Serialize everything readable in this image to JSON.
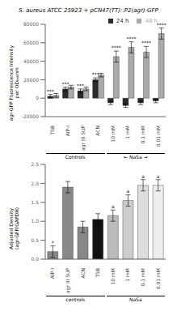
{
  "chart_data": [
    {
      "type": "bar",
      "title": "S. aureus ATCC 25923 + pCN47(TT)::P2(agr)-GFP",
      "ylabel": "agr-GFP Fluorescence Intensity\nper OD₆₀₀nm",
      "categories": [
        "TSB",
        "AIP-I",
        "agr III SUP",
        "ACN",
        "10 mM",
        "1 mM",
        "0.1 mM",
        "0.01 mM"
      ],
      "series": [
        {
          "name": "24 h",
          "color": "#2a2a2a",
          "values": [
            2000,
            10000,
            8000,
            20000,
            -5000,
            -8000,
            -5000,
            -3000
          ],
          "errors": [
            2000,
            2000,
            2000,
            2000,
            2000,
            2000,
            2000,
            2000
          ],
          "annotations": [
            "***",
            "***",
            "***",
            "***",
            null,
            null,
            null,
            null
          ]
        },
        {
          "name": "48 h",
          "color": "#aaaaaa",
          "values": [
            3000,
            12000,
            10000,
            25000,
            45000,
            55000,
            50000,
            70000
          ],
          "errors": [
            2000,
            2000,
            2000,
            2000,
            6000,
            6000,
            6000,
            6000
          ],
          "annotations": [
            null,
            null,
            null,
            null,
            "****",
            "****",
            "****",
            "****"
          ]
        }
      ],
      "ylim": [
        -20000,
        80000
      ],
      "yticks": [
        -20000,
        0,
        20000,
        40000,
        60000,
        80000
      ],
      "legend": "upper right",
      "group_labels": [
        {
          "label": "Controls",
          "categories": [
            "TSB",
            "AIP-I",
            "agr III SUP",
            "ACN"
          ]
        },
        {
          "label": "← NaSa →",
          "categories": [
            "10 mM",
            "1 mM",
            "0.1 mM",
            "0.01 mM"
          ]
        }
      ]
    },
    {
      "type": "bar",
      "ylabel": "Adjusted Density\n(agr-GFP/GAPDH)",
      "categories": [
        "AIP-I",
        "agr III SUP",
        "ACN",
        "TSB",
        "10 mM",
        "1 mM",
        "0.1 mM",
        "0.01 mM"
      ],
      "values": [
        0.2,
        1.9,
        0.85,
        1.05,
        1.15,
        1.55,
        1.95,
        1.95
      ],
      "colors": [
        "#888888",
        "#888888",
        "#888888",
        "#111111",
        "#bbbbbb",
        "#cccccc",
        "#dddddd",
        "#eeeeee"
      ],
      "errors": [
        0.15,
        0.15,
        0.15,
        0.15,
        0.15,
        0.15,
        0.15,
        0.15
      ],
      "annotations": [
        "*",
        null,
        null,
        null,
        "a",
        "a",
        "a",
        "a"
      ],
      "ylim": [
        0.0,
        2.5
      ],
      "yticks": [
        {
          "value": 0,
          "label": "0.0"
        },
        0.5,
        {
          "value": 1,
          "label": "1.0"
        },
        1.5,
        {
          "value": 2,
          "label": "2.0"
        },
        2.5
      ],
      "group_labels": [
        {
          "label": "controls",
          "categories": [
            "AIP-I",
            "agr III SUP",
            "ACN",
            "TSB"
          ]
        },
        {
          "label": "NaSa",
          "categories": [
            "10 mM",
            "1 mM",
            "0.1 mM",
            "0.01 mM"
          ]
        }
      ]
    }
  ]
}
